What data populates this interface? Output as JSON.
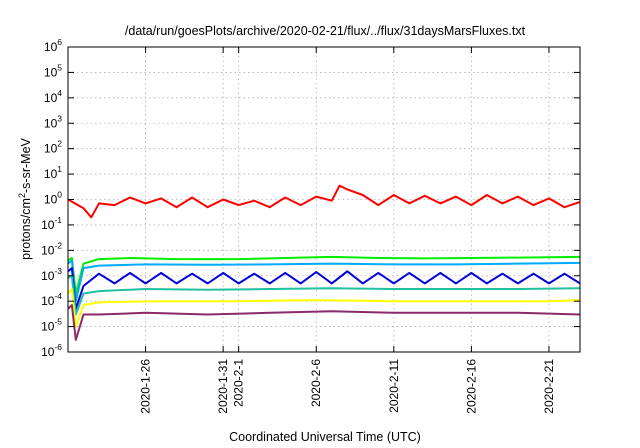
{
  "chart_data": {
    "type": "line",
    "title": "/data/run/goesPlots/archive/2020-02-21/flux/../flux/31daysMarsFluxes.txt",
    "xlabel": "Coordinated Universal Time (UTC)",
    "ylabel": "protons/cm²-s-sr-MeV",
    "ylabel_parts": {
      "pre": "protons/cm",
      "sup": "2",
      "post": "-s-sr-MeV"
    },
    "yscale": "log",
    "ylim": [
      1e-06,
      1000000.0
    ],
    "xlim": [
      "2020-01-21",
      "2020-02-23"
    ],
    "grid": true,
    "yticks": [
      {
        "value": 1e-06,
        "base": "10",
        "exp": "-6"
      },
      {
        "value": 1e-05,
        "base": "10",
        "exp": "-5"
      },
      {
        "value": 0.0001,
        "base": "10",
        "exp": "-4"
      },
      {
        "value": 0.001,
        "base": "10",
        "exp": "-3"
      },
      {
        "value": 0.01,
        "base": "10",
        "exp": "-2"
      },
      {
        "value": 0.1,
        "base": "10",
        "exp": "-1"
      },
      {
        "value": 1,
        "base": "10",
        "exp": "0"
      },
      {
        "value": 10,
        "base": "10",
        "exp": "1"
      },
      {
        "value": 100,
        "base": "10",
        "exp": "2"
      },
      {
        "value": 1000,
        "base": "10",
        "exp": "3"
      },
      {
        "value": 10000,
        "base": "10",
        "exp": "4"
      },
      {
        "value": 100000,
        "base": "10",
        "exp": "5"
      },
      {
        "value": 1000000,
        "base": "10",
        "exp": "6"
      }
    ],
    "xticks": [
      {
        "value": "2020-01-26",
        "label": "2020-1-26"
      },
      {
        "value": "2020-01-31",
        "label": "2020-1-31"
      },
      {
        "value": "2020-02-01",
        "label": "2020-2-1"
      },
      {
        "value": "2020-02-06",
        "label": "2020-2-6"
      },
      {
        "value": "2020-02-11",
        "label": "2020-2-11"
      },
      {
        "value": "2020-02-16",
        "label": "2020-2-16"
      },
      {
        "value": "2020-02-21",
        "label": "2020-2-21"
      }
    ],
    "series": [
      {
        "color": "#ff0000",
        "values": [
          [
            "2020-01-21",
            1.0
          ],
          [
            "2020-01-22",
            0.45
          ],
          [
            "2020-01-22T12:00",
            0.2
          ],
          [
            "2020-01-23",
            0.7
          ],
          [
            "2020-01-24",
            0.6
          ],
          [
            "2020-01-25",
            1.2
          ],
          [
            "2020-01-26",
            0.7
          ],
          [
            "2020-01-27",
            1.1
          ],
          [
            "2020-01-28",
            0.5
          ],
          [
            "2020-01-29",
            1.2
          ],
          [
            "2020-01-30",
            0.5
          ],
          [
            "2020-01-31",
            1.0
          ],
          [
            "2020-02-01",
            0.6
          ],
          [
            "2020-02-02",
            0.9
          ],
          [
            "2020-02-03",
            0.5
          ],
          [
            "2020-02-04",
            1.2
          ],
          [
            "2020-02-05",
            0.6
          ],
          [
            "2020-02-06",
            1.3
          ],
          [
            "2020-02-07",
            0.9
          ],
          [
            "2020-02-07T12:00",
            3.5
          ],
          [
            "2020-02-08",
            2.5
          ],
          [
            "2020-02-09",
            1.5
          ],
          [
            "2020-02-10",
            0.6
          ],
          [
            "2020-02-11",
            1.5
          ],
          [
            "2020-02-12",
            0.7
          ],
          [
            "2020-02-13",
            1.4
          ],
          [
            "2020-02-14",
            0.7
          ],
          [
            "2020-02-15",
            1.3
          ],
          [
            "2020-02-16",
            0.6
          ],
          [
            "2020-02-17",
            1.5
          ],
          [
            "2020-02-18",
            0.7
          ],
          [
            "2020-02-19",
            1.3
          ],
          [
            "2020-02-20",
            0.6
          ],
          [
            "2020-02-21",
            1.1
          ],
          [
            "2020-02-22",
            0.5
          ],
          [
            "2020-02-23",
            0.8
          ]
        ]
      },
      {
        "color": "#00ee00",
        "values": [
          [
            "2020-01-21",
            0.004
          ],
          [
            "2020-01-21T06:00",
            0.005
          ],
          [
            "2020-01-21T12:00",
            0.0002
          ],
          [
            "2020-01-22",
            0.003
          ],
          [
            "2020-01-23",
            0.0045
          ],
          [
            "2020-01-25",
            0.005
          ],
          [
            "2020-01-28",
            0.0045
          ],
          [
            "2020-02-01",
            0.0045
          ],
          [
            "2020-02-04",
            0.005
          ],
          [
            "2020-02-07",
            0.0055
          ],
          [
            "2020-02-10",
            0.005
          ],
          [
            "2020-02-13",
            0.0048
          ],
          [
            "2020-02-16",
            0.005
          ],
          [
            "2020-02-19",
            0.0052
          ],
          [
            "2020-02-23",
            0.0055
          ]
        ]
      },
      {
        "color": "#00aaff",
        "values": [
          [
            "2020-01-21",
            0.003
          ],
          [
            "2020-01-21T06:00",
            0.004
          ],
          [
            "2020-01-21T12:00",
            0.0001
          ],
          [
            "2020-01-22",
            0.002
          ],
          [
            "2020-01-23",
            0.0025
          ],
          [
            "2020-01-26",
            0.0028
          ],
          [
            "2020-01-30",
            0.0027
          ],
          [
            "2020-02-03",
            0.0028
          ],
          [
            "2020-02-07",
            0.003
          ],
          [
            "2020-02-11",
            0.0028
          ],
          [
            "2020-02-15",
            0.0028
          ],
          [
            "2020-02-19",
            0.003
          ],
          [
            "2020-02-23",
            0.0032
          ]
        ]
      },
      {
        "color": "#0000dd",
        "values": [
          [
            "2020-01-21",
            0.0015
          ],
          [
            "2020-01-21T06:00",
            0.002
          ],
          [
            "2020-01-21T12:00",
            5e-05
          ],
          [
            "2020-01-22",
            0.0004
          ],
          [
            "2020-01-23",
            0.0012
          ],
          [
            "2020-01-24",
            0.0005
          ],
          [
            "2020-01-25",
            0.0013
          ],
          [
            "2020-01-26",
            0.0005
          ],
          [
            "2020-01-27",
            0.0013
          ],
          [
            "2020-01-28",
            0.0005
          ],
          [
            "2020-01-29",
            0.0012
          ],
          [
            "2020-01-30",
            0.0005
          ],
          [
            "2020-01-31",
            0.0013
          ],
          [
            "2020-02-01",
            0.0005
          ],
          [
            "2020-02-02",
            0.0012
          ],
          [
            "2020-02-03",
            0.0005
          ],
          [
            "2020-02-04",
            0.0013
          ],
          [
            "2020-02-05",
            0.0005
          ],
          [
            "2020-02-06",
            0.0014
          ],
          [
            "2020-02-07",
            0.0005
          ],
          [
            "2020-02-08",
            0.0015
          ],
          [
            "2020-02-09",
            0.0005
          ],
          [
            "2020-02-10",
            0.0013
          ],
          [
            "2020-02-11",
            0.0005
          ],
          [
            "2020-02-12",
            0.0013
          ],
          [
            "2020-02-13",
            0.0005
          ],
          [
            "2020-02-14",
            0.0013
          ],
          [
            "2020-02-15",
            0.0005
          ],
          [
            "2020-02-16",
            0.0013
          ],
          [
            "2020-02-17",
            0.0005
          ],
          [
            "2020-02-18",
            0.0012
          ],
          [
            "2020-02-19",
            0.0005
          ],
          [
            "2020-02-20",
            0.0012
          ],
          [
            "2020-02-21",
            0.0005
          ],
          [
            "2020-02-22",
            0.0012
          ],
          [
            "2020-02-23",
            0.0005
          ]
        ]
      },
      {
        "color": "#20c0a0",
        "values": [
          [
            "2020-01-21",
            0.0008
          ],
          [
            "2020-01-21T06:00",
            0.001
          ],
          [
            "2020-01-21T12:00",
            3e-05
          ],
          [
            "2020-01-22",
            0.0002
          ],
          [
            "2020-01-23",
            0.00025
          ],
          [
            "2020-01-26",
            0.0003
          ],
          [
            "2020-01-30",
            0.00028
          ],
          [
            "2020-02-03",
            0.0003
          ],
          [
            "2020-02-07",
            0.00032
          ],
          [
            "2020-02-11",
            0.0003
          ],
          [
            "2020-02-15",
            0.0003
          ],
          [
            "2020-02-19",
            0.0003
          ],
          [
            "2020-02-23",
            0.00032
          ]
        ]
      },
      {
        "color": "#ffff00",
        "values": [
          [
            "2020-01-21",
            0.0002
          ],
          [
            "2020-01-21T06:00",
            0.0003
          ],
          [
            "2020-01-21T12:00",
            1e-05
          ],
          [
            "2020-01-22",
            7e-05
          ],
          [
            "2020-01-23",
            9e-05
          ],
          [
            "2020-01-27",
            0.0001
          ],
          [
            "2020-02-01",
            0.0001
          ],
          [
            "2020-02-06",
            0.00011
          ],
          [
            "2020-02-11",
            0.0001
          ],
          [
            "2020-02-16",
            0.0001
          ],
          [
            "2020-02-21",
            0.0001
          ],
          [
            "2020-02-23",
            0.00011
          ]
        ]
      },
      {
        "color": "#8b2a6a",
        "values": [
          [
            "2020-01-21",
            5e-05
          ],
          [
            "2020-01-21T06:00",
            7e-05
          ],
          [
            "2020-01-21T12:00",
            3e-06
          ],
          [
            "2020-01-22",
            3e-05
          ],
          [
            "2020-01-23",
            3e-05
          ],
          [
            "2020-01-26",
            3.5e-05
          ],
          [
            "2020-01-30",
            3e-05
          ],
          [
            "2020-02-03",
            3.5e-05
          ],
          [
            "2020-02-07",
            4e-05
          ],
          [
            "2020-02-11",
            3.5e-05
          ],
          [
            "2020-02-15",
            3.5e-05
          ],
          [
            "2020-02-19",
            3.5e-05
          ],
          [
            "2020-02-23",
            3e-05
          ]
        ]
      }
    ]
  }
}
